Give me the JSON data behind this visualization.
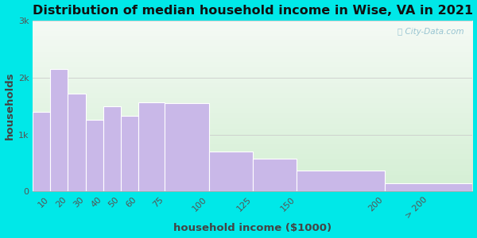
{
  "title": "Distribution of median household income in Wise, VA in 2021",
  "xlabel": "household income ($1000)",
  "ylabel": "households",
  "bar_labels": [
    "10",
    "20",
    "30",
    "40",
    "50",
    "60",
    "75",
    "100",
    "125",
    "150",
    "200",
    "> 200"
  ],
  "bar_lefts": [
    0,
    10,
    20,
    30,
    40,
    50,
    60,
    75,
    100,
    125,
    150,
    200
  ],
  "bar_widths": [
    10,
    10,
    10,
    10,
    10,
    10,
    15,
    25,
    25,
    25,
    50,
    50
  ],
  "bar_values": [
    1400,
    2150,
    1720,
    1260,
    1500,
    1330,
    1560,
    1550,
    700,
    580,
    370,
    150
  ],
  "bar_color": "#c9b8e8",
  "bar_edge_color": "#ffffff",
  "ylim": [
    0,
    3000
  ],
  "xlim": [
    0,
    250
  ],
  "yticks": [
    0,
    1000,
    2000,
    3000
  ],
  "ytick_labels": [
    "0",
    "1k",
    "2k",
    "3k"
  ],
  "xtick_positions": [
    10,
    20,
    30,
    40,
    50,
    60,
    75,
    100,
    125,
    150,
    200,
    225
  ],
  "bg_outer": "#00e8e8",
  "bg_inner": "#e8f5e8",
  "watermark": "City-Data.com",
  "title_fontsize": 11.5,
  "axis_label_fontsize": 9.5,
  "tick_fontsize": 8
}
